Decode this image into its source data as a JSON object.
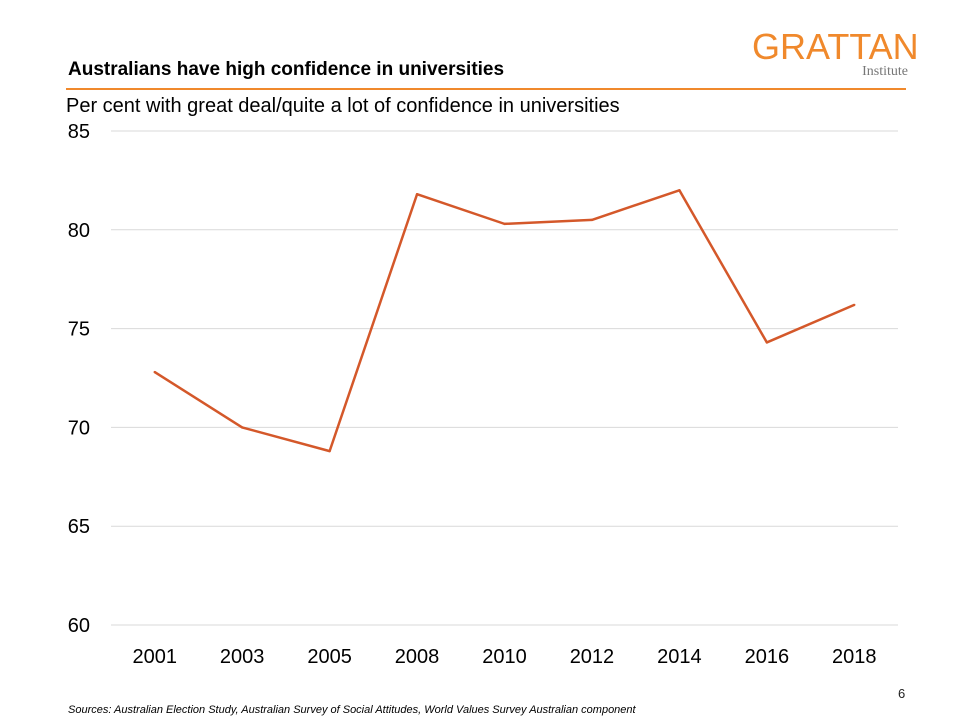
{
  "header": {
    "title": "Australians have high confidence in universities",
    "subtitle": "Per cent with great deal/quite a lot of confidence in universities"
  },
  "logo": {
    "main": "GRATTAN",
    "sub": "Institute",
    "color": "#f0892c"
  },
  "footer": {
    "source": "Sources: Australian Election Study, Australian Survey of Social Attitudes, World Values Survey Australian component",
    "page": "6"
  },
  "chart_data": {
    "type": "line",
    "title": "Australians have high confidence in universities",
    "subtitle": "Per cent with great deal/quite a lot of confidence in universities",
    "categories": [
      "2001",
      "2003",
      "2005",
      "2008",
      "2010",
      "2012",
      "2014",
      "2016",
      "2018"
    ],
    "values": [
      72.8,
      70.0,
      68.8,
      81.8,
      80.3,
      80.5,
      82.0,
      74.3,
      76.2
    ],
    "ylim": [
      60,
      85
    ],
    "yticks": [
      "60",
      "65",
      "70",
      "75",
      "80",
      "85"
    ],
    "grid": true,
    "line_color": "#d4582a",
    "grid_color": "#d9d9d9"
  }
}
